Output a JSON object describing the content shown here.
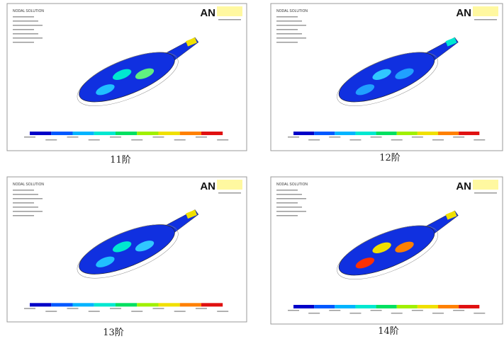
{
  "panels": [
    {
      "header": "NODAL SOLUTION",
      "logo": "AN",
      "caption": "11阶"
    },
    {
      "header": "NODAL SOLUTION",
      "logo": "AN",
      "caption": "12阶"
    },
    {
      "header": "NODAL SOLUTION",
      "logo": "AN",
      "caption": "13阶"
    },
    {
      "header": "NODAL SOLUTION",
      "logo": "AN",
      "caption": "14阶"
    }
  ]
}
